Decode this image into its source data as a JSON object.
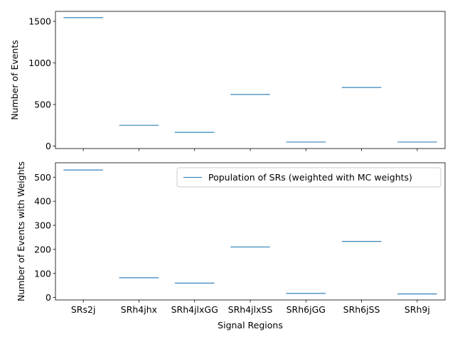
{
  "chart_data": [
    {
      "type": "step",
      "categories": [
        "SRs2j",
        "SRh4jhx",
        "SRh4jlxGG",
        "SRh4jlxSS",
        "SRh6jGG",
        "SRh6jSS",
        "SRh9j"
      ],
      "values": [
        1545,
        250,
        165,
        620,
        48,
        705,
        48
      ],
      "xlabel": "",
      "ylabel": "Number of Events",
      "ylim": [
        -30,
        1620
      ],
      "yticks": [
        0,
        500,
        1000,
        1500
      ],
      "grid": false,
      "color": "#1f77b4"
    },
    {
      "type": "step",
      "categories": [
        "SRs2j",
        "SRh4jhx",
        "SRh4jlxGG",
        "SRh4jlxSS",
        "SRh6jGG",
        "SRh6jSS",
        "SRh9j"
      ],
      "series": [
        {
          "name": "Population of SRs (weighted with MC weights)",
          "values": [
            530,
            82,
            60,
            210,
            17,
            233,
            15
          ]
        }
      ],
      "xlabel": "Signal Regions",
      "ylabel": "Number of Events with Weights",
      "ylim": [
        -10,
        560
      ],
      "yticks": [
        0,
        100,
        200,
        300,
        400,
        500
      ],
      "grid": false,
      "legend": "top-right",
      "color": "#1f77b4"
    }
  ]
}
